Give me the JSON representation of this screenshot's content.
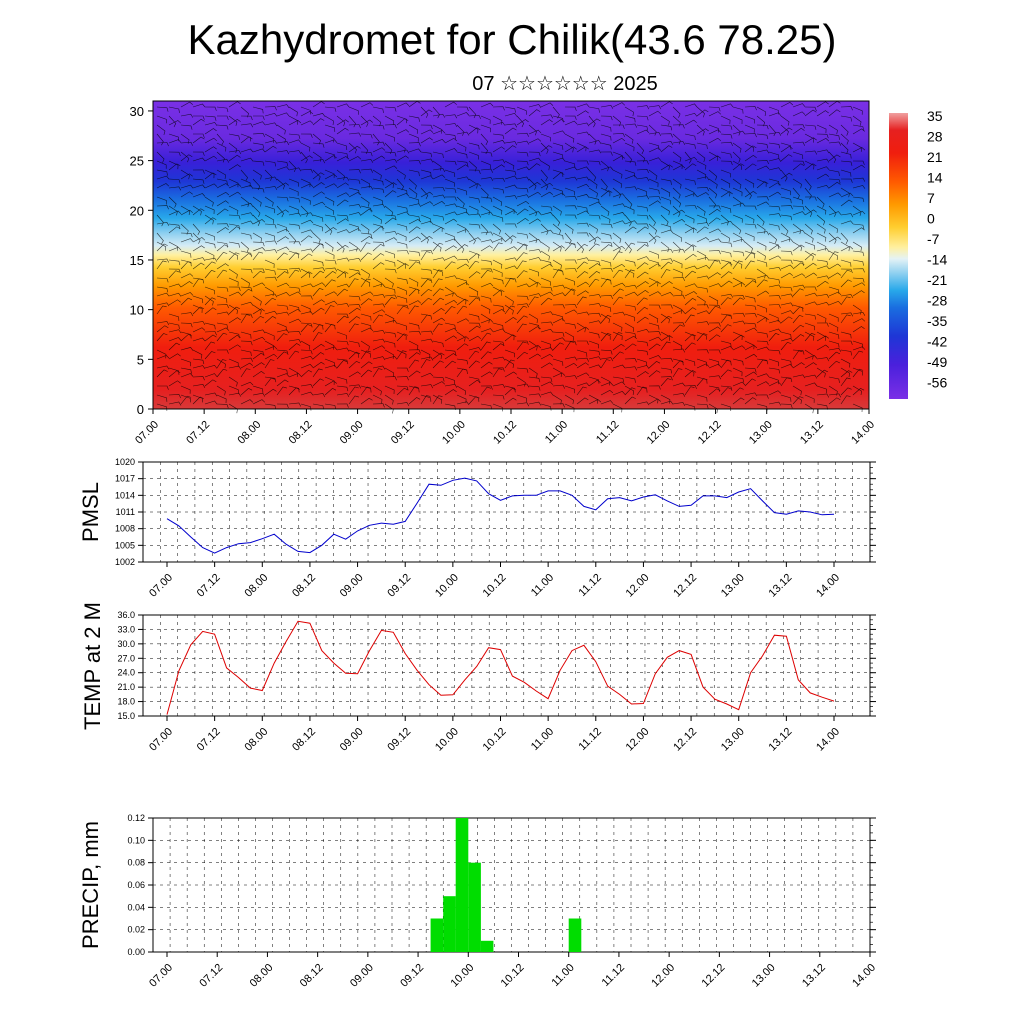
{
  "title": "Kazhydromet for Chilik(43.6 78.25)",
  "subtitle": "07 ☆☆☆☆☆☆ 2025",
  "time_labels": [
    "07.00",
    "07.12",
    "08.00",
    "08.12",
    "09.00",
    "09.12",
    "10.00",
    "10.12",
    "11.00",
    "11.12",
    "12.00",
    "12.12",
    "13.00",
    "13.12",
    "14.00"
  ],
  "chart_data": [
    {
      "type": "heatmap",
      "y_ticks": [
        0,
        5,
        10,
        15,
        20,
        25,
        30
      ],
      "ylim": [
        0,
        31
      ],
      "colorbar_labels": [
        "35",
        "28",
        "21",
        "14",
        "7",
        "0",
        "-7",
        "-14",
        "-21",
        "-28",
        "-35",
        "-42",
        "-49",
        "-56"
      ],
      "overlay": "wind barbs"
    },
    {
      "type": "line",
      "ylabel": "PMSL",
      "ylim": [
        1002,
        1020
      ],
      "y_ticks": [
        1002,
        1005,
        1008,
        1011,
        1014,
        1017,
        1020
      ],
      "color": "#0000cc",
      "values": [
        1009.8,
        1008.5,
        1006.5,
        1004.6,
        1003.6,
        1004.6,
        1005.3,
        1005.5,
        1006.2,
        1007.0,
        1005.2,
        1003.9,
        1003.7,
        1005.0,
        1007.0,
        1006.1,
        1007.6,
        1008.6,
        1009.0,
        1008.8,
        1009.3,
        1012.6,
        1016.0,
        1015.8,
        1016.7,
        1017.1,
        1016.6,
        1014.3,
        1013.1,
        1013.9,
        1014.0,
        1014.0,
        1014.8,
        1014.8,
        1014.0,
        1012.0,
        1011.4,
        1013.4,
        1013.6,
        1013.0,
        1013.7,
        1014.1,
        1013.0,
        1012.0,
        1012.2,
        1013.9,
        1013.9,
        1013.6,
        1014.6,
        1015.2,
        1013.0,
        1010.9,
        1010.6,
        1011.2,
        1011.0,
        1010.5,
        1010.6
      ],
      "x_start": 0.0,
      "x_step": 3
    },
    {
      "type": "line",
      "ylabel": "TEMP at 2 M",
      "ylim": [
        15,
        36
      ],
      "y_ticks": [
        "15.0",
        "18.0",
        "21.0",
        "24.0",
        "27.0",
        "30.0",
        "33.0",
        "36.0"
      ],
      "color": "#dd0000",
      "values": [
        15.3,
        24.4,
        29.8,
        32.6,
        32.0,
        25.0,
        23.0,
        20.8,
        20.3,
        26.0,
        30.5,
        34.7,
        34.3,
        28.6,
        26.0,
        23.9,
        23.8,
        28.6,
        32.8,
        32.4,
        28.0,
        24.5,
        21.5,
        19.3,
        19.4,
        22.5,
        25.3,
        29.2,
        28.8,
        23.3,
        22.0,
        20.2,
        18.6,
        24.5,
        28.6,
        29.7,
        26.3,
        21.2,
        19.5,
        17.5,
        17.6,
        23.8,
        27.2,
        28.6,
        27.8,
        21.0,
        18.5,
        17.5,
        16.3,
        24.0,
        27.5,
        31.8,
        31.6,
        22.5,
        19.8,
        18.9,
        18.1
      ],
      "x_start": 0.0,
      "x_step": 3
    },
    {
      "type": "bar",
      "ylabel": "PRECIP, mm",
      "ylim": [
        0,
        0.12
      ],
      "y_ticks": [
        "0.00",
        "0.02",
        "0.04",
        "0.06",
        "0.08",
        "0.10",
        "0.12"
      ],
      "color": "#00dd00",
      "bar_width_hours": 3,
      "bars": [
        {
          "start_hours": 63,
          "value": 0.03
        },
        {
          "start_hours": 66,
          "value": 0.05
        },
        {
          "start_hours": 69,
          "value": 0.12
        },
        {
          "start_hours": 72,
          "value": 0.08
        },
        {
          "start_hours": 75,
          "value": 0.01
        },
        {
          "start_hours": 96,
          "value": 0.03
        }
      ]
    }
  ]
}
